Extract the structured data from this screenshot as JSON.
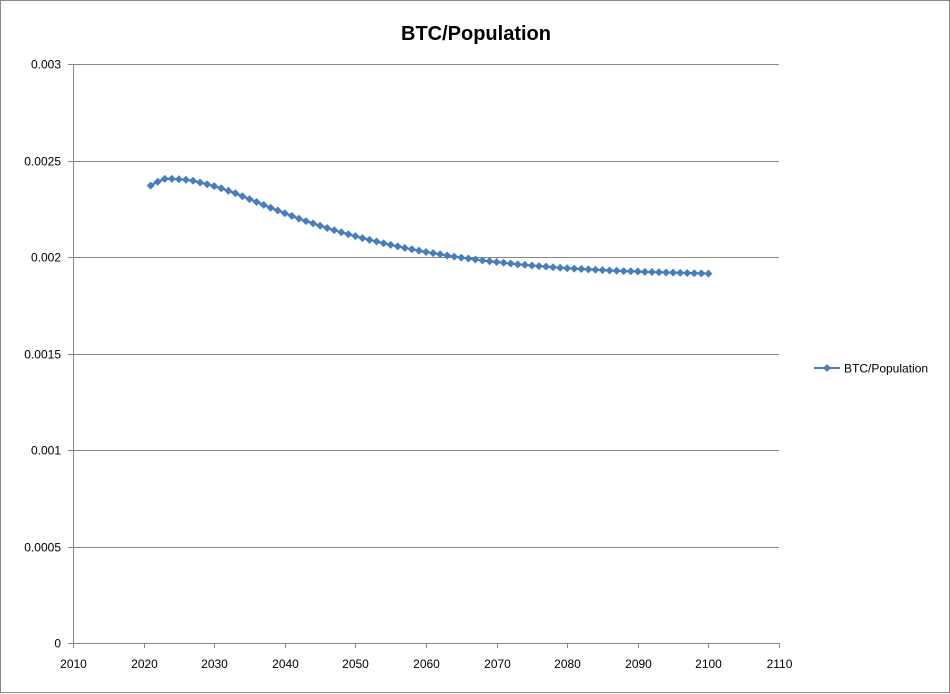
{
  "chart_data": {
    "type": "scatter",
    "title": "BTC/Population",
    "xlabel": "",
    "ylabel": "",
    "xlim": [
      2010,
      2110
    ],
    "ylim": [
      0,
      0.003
    ],
    "x_ticks": [
      2010,
      2020,
      2030,
      2040,
      2050,
      2060,
      2070,
      2080,
      2090,
      2100,
      2110
    ],
    "y_ticks": [
      0,
      0.0005,
      0.001,
      0.0015,
      0.002,
      0.0025,
      0.003
    ],
    "x_tick_labels": [
      "2010",
      "2020",
      "2030",
      "2040",
      "2050",
      "2060",
      "2070",
      "2080",
      "2090",
      "2100",
      "2110"
    ],
    "y_tick_labels": [
      "0",
      "0.0005",
      "0.001",
      "0.0015",
      "0.002",
      "0.0025",
      "0.003"
    ],
    "grid": "horizontal",
    "legend_position": "right",
    "series": [
      {
        "name": "BTC/Population",
        "color": "#4a7ebb",
        "marker": "diamond",
        "x": [
          2021,
          2022,
          2023,
          2024,
          2025,
          2026,
          2027,
          2028,
          2029,
          2030,
          2031,
          2032,
          2033,
          2034,
          2035,
          2036,
          2037,
          2038,
          2039,
          2040,
          2041,
          2042,
          2043,
          2044,
          2045,
          2046,
          2047,
          2048,
          2049,
          2050,
          2051,
          2052,
          2053,
          2054,
          2055,
          2056,
          2057,
          2058,
          2059,
          2060,
          2061,
          2062,
          2063,
          2064,
          2065,
          2066,
          2067,
          2068,
          2069,
          2070,
          2071,
          2072,
          2073,
          2074,
          2075,
          2076,
          2077,
          2078,
          2079,
          2080,
          2081,
          2082,
          2083,
          2084,
          2085,
          2086,
          2087,
          2088,
          2089,
          2090,
          2091,
          2092,
          2093,
          2094,
          2095,
          2096,
          2097,
          2098,
          2099,
          2100
        ],
        "y": [
          0.00237,
          0.00239,
          0.002405,
          0.002405,
          0.002403,
          0.0024,
          0.002395,
          0.002386,
          0.002377,
          0.002367,
          0.002356,
          0.002343,
          0.00233,
          0.002315,
          0.0023,
          0.002285,
          0.00227,
          0.002255,
          0.002241,
          0.002227,
          0.002213,
          0.002199,
          0.002186,
          0.002174,
          0.002162,
          0.00215,
          0.002139,
          0.002128,
          0.002118,
          0.002108,
          0.002098,
          0.002089,
          0.00208,
          0.002071,
          0.002063,
          0.002055,
          0.002047,
          0.00204,
          0.002033,
          0.002026,
          0.00202,
          0.002014,
          0.002008,
          0.002002,
          0.001997,
          0.001992,
          0.001987,
          0.001982,
          0.001978,
          0.001974,
          0.00197,
          0.001966,
          0.001962,
          0.001959,
          0.001956,
          0.001953,
          0.00195,
          0.001947,
          0.001944,
          0.001942,
          0.00194,
          0.001938,
          0.001936,
          0.001934,
          0.001932,
          0.00193,
          0.001929,
          0.001927,
          0.001926,
          0.001925,
          0.001923,
          0.001922,
          0.001921,
          0.00192,
          0.001919,
          0.001918,
          0.001917,
          0.001916,
          0.001915,
          0.001914
        ]
      }
    ]
  }
}
